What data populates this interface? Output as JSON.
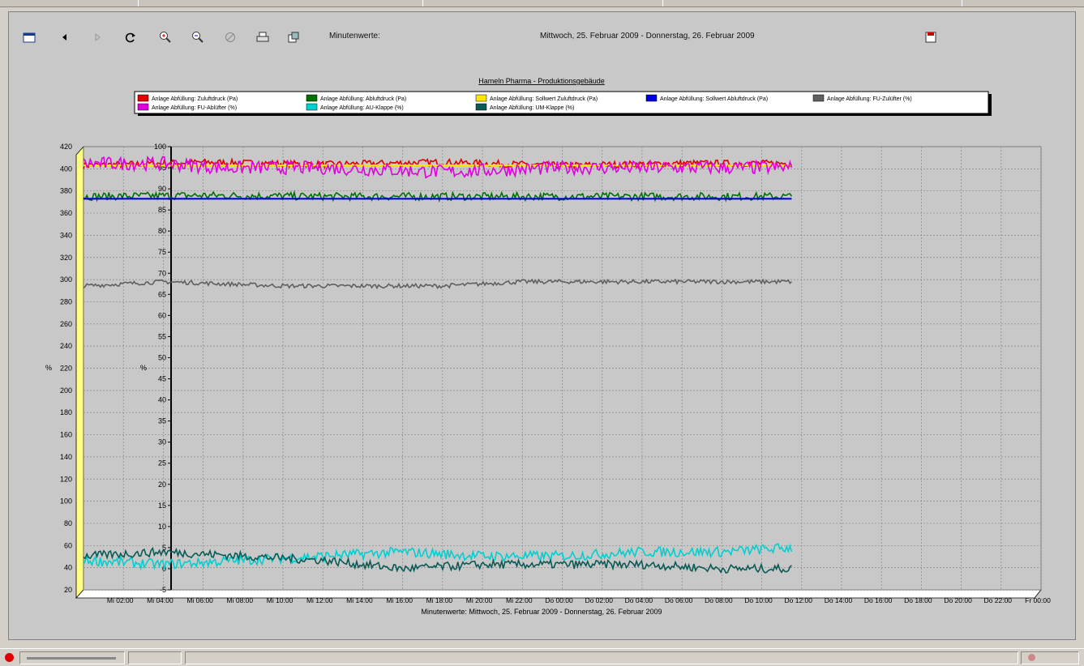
{
  "toolbar": {
    "icons": [
      "calendar-icon",
      "arrow-left-icon",
      "arrow-right-icon",
      "refresh-icon",
      "zoom-in-icon",
      "zoom-out-icon",
      "cancel-icon",
      "print-icon",
      "export-icon"
    ],
    "mode_label": "Minutenwerte:",
    "date_range": "Mittwoch, 25. Februar 2009 - Donnerstag, 26. Februar 2009",
    "save_icon": "save-icon"
  },
  "chart_data": {
    "type": "line",
    "title": "Hameln Pharma - Produktionsgebäude",
    "xlabel": "Minutenwerte: Mittwoch, 25. Februar 2009 - Donnerstag, 26. Februar 2009",
    "ylabel_left": "%",
    "ylabel_right": "%",
    "ylim_left": [
      20,
      420
    ],
    "ylim_right": [
      -5,
      100
    ],
    "yticks_left": [
      20,
      40,
      60,
      80,
      100,
      120,
      140,
      160,
      180,
      200,
      220,
      240,
      260,
      280,
      300,
      320,
      340,
      360,
      380,
      400,
      420
    ],
    "yticks_right": [
      -5,
      0,
      5,
      10,
      15,
      20,
      25,
      30,
      35,
      40,
      45,
      50,
      55,
      60,
      65,
      70,
      75,
      80,
      85,
      90,
      95,
      100
    ],
    "x_tick_labels": [
      "Mi 02:00",
      "Mi 04:00",
      "Mi 06:00",
      "Mi 08:00",
      "Mi 10:00",
      "Mi 12:00",
      "Mi 14:00",
      "Mi 16:00",
      "Mi 18:00",
      "Mi 20:00",
      "Mi 22:00",
      "Do 00:00",
      "Do 02:00",
      "Do 04:00",
      "Do 06:00",
      "Do 08:00",
      "Do 10:00",
      "Do 12:00",
      "Do 14:00",
      "Do 16:00",
      "Do 18:00",
      "Do 20:00",
      "Do 22:00",
      "Fr 00:00"
    ],
    "x_hours_range": [
      0,
      48
    ],
    "x_data_end_hours": 35.5,
    "grid": true,
    "legend_position": "top",
    "series": [
      {
        "name": "Anlage Abfüllung: Zuluftdruck (Pa)",
        "color": "#e00000",
        "axis": "left",
        "points": [
          [
            0,
            403
          ],
          [
            6,
            406
          ],
          [
            12,
            404
          ],
          [
            18,
            406
          ],
          [
            24,
            403
          ],
          [
            30,
            405
          ],
          [
            35.5,
            405
          ]
        ]
      },
      {
        "name": "Anlage Abfüllung: Abluftdruck (Pa)",
        "color": "#007000",
        "axis": "left",
        "points": [
          [
            0,
            375
          ],
          [
            6,
            376
          ],
          [
            12,
            375
          ],
          [
            18,
            375
          ],
          [
            24,
            375
          ],
          [
            30,
            375
          ],
          [
            35.5,
            375
          ]
        ]
      },
      {
        "name": "Anlage Abfüllung: Sollwert Zuluftdruck (Pa)",
        "color": "#ffe600",
        "axis": "left",
        "points": [
          [
            0,
            403
          ],
          [
            35.5,
            403
          ]
        ]
      },
      {
        "name": "Anlage Abfüllung: Sollwert Abluftdruck (Pa)",
        "color": "#0000e0",
        "axis": "left",
        "points": [
          [
            0,
            373
          ],
          [
            35.5,
            373
          ]
        ]
      },
      {
        "name": "Anlage Abfüllung: FU-Zulüfter (%)",
        "color": "#606060",
        "axis": "right",
        "points": [
          [
            0,
            67
          ],
          [
            4,
            68
          ],
          [
            10,
            67
          ],
          [
            18,
            67
          ],
          [
            22,
            68
          ],
          [
            28,
            68
          ],
          [
            35.5,
            68
          ]
        ]
      },
      {
        "name": "Anlage Abfüllung: FU-Ablüfter (%)",
        "color": "#e000e0",
        "axis": "right",
        "points": [
          [
            0,
            96
          ],
          [
            4,
            96
          ],
          [
            7,
            95
          ],
          [
            12,
            95
          ],
          [
            18,
            94
          ],
          [
            24,
            95
          ],
          [
            30,
            95
          ],
          [
            35.5,
            95
          ]
        ]
      },
      {
        "name": "Anlage Abfüllung: AU-Klappe (%)",
        "color": "#00d0d0",
        "axis": "right",
        "points": [
          [
            0,
            2
          ],
          [
            4,
            1
          ],
          [
            8,
            2
          ],
          [
            12,
            3
          ],
          [
            16,
            4
          ],
          [
            20,
            3
          ],
          [
            24,
            3
          ],
          [
            28,
            4
          ],
          [
            32,
            4
          ],
          [
            35.5,
            5
          ]
        ]
      },
      {
        "name": "Anlage Abfüllung: UM-Klappe (%)",
        "color": "#0a5a55",
        "axis": "right",
        "points": [
          [
            0,
            3
          ],
          [
            4,
            4
          ],
          [
            8,
            3
          ],
          [
            12,
            2
          ],
          [
            16,
            0
          ],
          [
            20,
            1
          ],
          [
            24,
            1
          ],
          [
            28,
            1
          ],
          [
            32,
            0
          ],
          [
            35.5,
            0
          ]
        ]
      }
    ]
  }
}
